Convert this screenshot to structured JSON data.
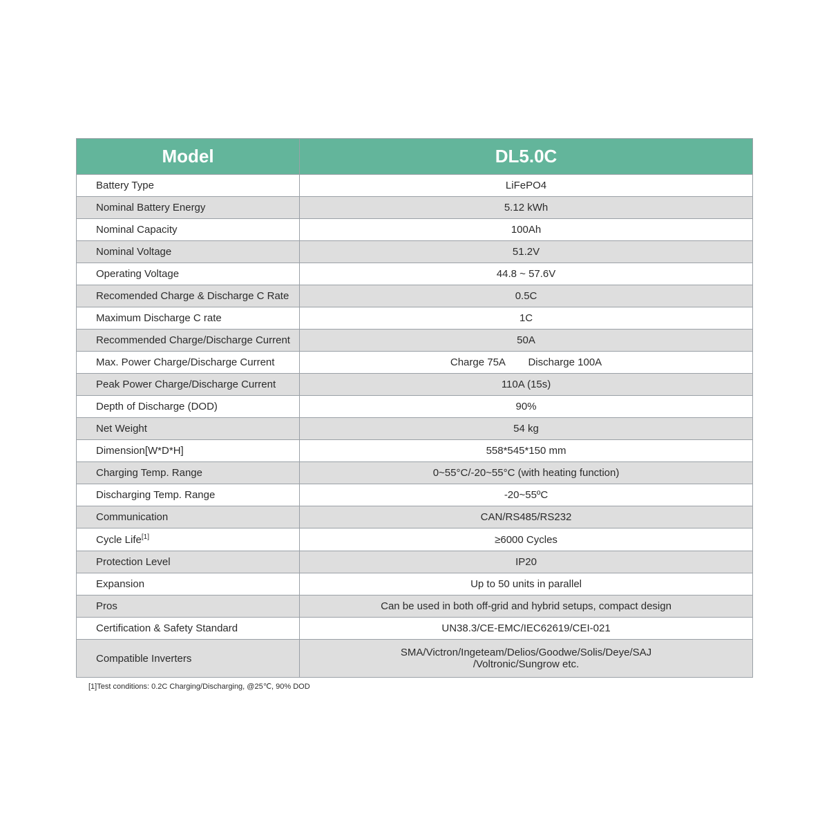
{
  "header": {
    "label": "Model",
    "value": "DL5.0C"
  },
  "rows": [
    {
      "label": "Battery Type",
      "value": "LiFePO4"
    },
    {
      "label": "Nominal Battery Energy",
      "value": "5.12 kWh"
    },
    {
      "label": "Nominal Capacity",
      "value": "100Ah"
    },
    {
      "label": "Nominal Voltage",
      "value": "51.2V"
    },
    {
      "label": "Operating Voltage",
      "value": "44.8 ~ 57.6V"
    },
    {
      "label": "Recomended Charge & Discharge C Rate",
      "value": "0.5C"
    },
    {
      "label": "Maximum Discharge C rate",
      "value": "1C"
    },
    {
      "label": "Recommended Charge/Discharge Current",
      "value": "50A"
    },
    {
      "label": "Max. Power Charge/Discharge Current",
      "value": "Charge 75A        Discharge 100A"
    },
    {
      "label": "Peak Power Charge/Discharge Current",
      "value": "110A (15s)"
    },
    {
      "label": "Depth of Discharge (DOD)",
      "value": "90%"
    },
    {
      "label": "Net Weight",
      "value": "54 kg"
    },
    {
      "label": "Dimension[W*D*H]",
      "value": "558*545*150 mm"
    },
    {
      "label": "Charging Temp. Range",
      "value": "0~55°C/-20~55°C (with heating function)"
    },
    {
      "label": "Discharging Temp. Range",
      "value": "-20~55ºC"
    },
    {
      "label": "Communication",
      "value": "CAN/RS485/RS232"
    },
    {
      "label": "Cycle Life",
      "sup": "[1]",
      "value": "≥6000 Cycles"
    },
    {
      "label": "Protection Level",
      "value": "IP20"
    },
    {
      "label": "Expansion",
      "value": "Up to 50 units in parallel"
    },
    {
      "label": "Pros",
      "value": "Can be used in both off-grid and hybrid setups, compact design"
    },
    {
      "label": "Certification & Safety Standard",
      "value": "UN38.3/CE-EMC/IEC62619/CEI-021"
    },
    {
      "label": "Compatible Inverters",
      "value": "SMA/Victron/Ingeteam/Delios/Goodwe/Solis/Deye/SAJ",
      "value2": "/Voltronic/Sungrow etc.",
      "tall": true
    }
  ],
  "footnote": "[1]Test conditions: 0.2C Charging/Discharging, @25℃, 90% DOD",
  "style": {
    "header_bg": "#63b59b",
    "header_fg": "#ffffff",
    "header_fontsize": 26,
    "row_even_bg": "#dedede",
    "row_odd_bg": "#ffffff",
    "border_color": "#9aa0a6",
    "text_color": "#2b2b2b",
    "cell_fontsize": 15,
    "footnote_fontsize": 11,
    "label_col_width_pct": 33,
    "value_col_width_pct": 67
  }
}
